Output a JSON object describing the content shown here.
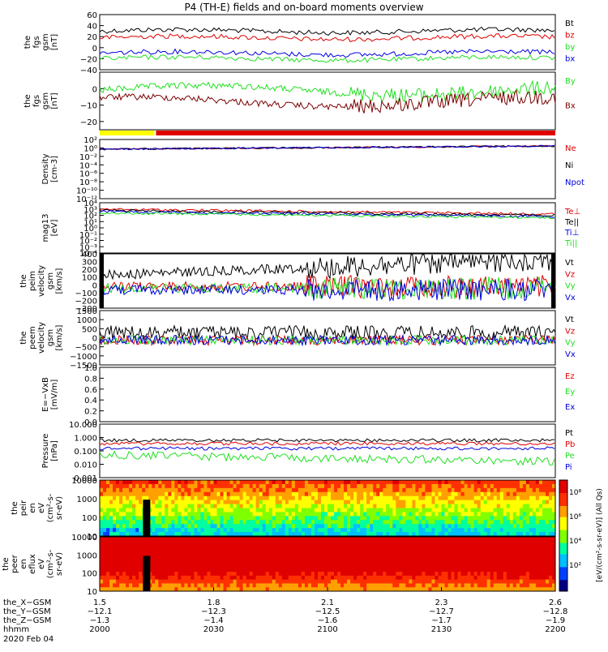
{
  "title": "P4 (TH-E) fields and on-board moments overview",
  "colors": {
    "black": "#000000",
    "red": "#e00000",
    "green": "#20e020",
    "blue": "#0000e0",
    "darkred": "#7a0000",
    "yellow": "#ffff00"
  },
  "chart_data": [
    {
      "id": "fgs_gsm",
      "type": "line",
      "ylabel": [
        "the",
        "fgs",
        "gsm",
        "[nT]"
      ],
      "ylim": [
        -40,
        60
      ],
      "yticks": [
        "60",
        "40",
        "20",
        "0",
        "−20",
        "−40"
      ],
      "series": [
        {
          "name": "Bt",
          "color": "black",
          "base": 30
        },
        {
          "name": "bz",
          "color": "red",
          "base": 18
        },
        {
          "name": "by",
          "color": "green",
          "base": -20
        },
        {
          "name": "bx",
          "color": "blue",
          "base": -10
        }
      ]
    },
    {
      "id": "fgs_gse",
      "type": "line",
      "ylabel": [
        "the",
        "fgs",
        "gsm",
        "[nT]"
      ],
      "ylim": [
        -25,
        10
      ],
      "yticks": [
        "0",
        "−10",
        "−20"
      ],
      "ytickvals": [
        0,
        -10,
        -20
      ],
      "series": [
        {
          "name": "By",
          "color": "green",
          "base": -1
        },
        {
          "name": "Bx",
          "color": "darkred",
          "base": -8
        }
      ]
    },
    {
      "id": "density",
      "type": "line",
      "ylabel": [
        "Density",
        "[cm-3]"
      ],
      "yticks": [
        "10²",
        "10⁰",
        "10⁻²",
        "10⁻⁴",
        "10⁻⁶",
        "10⁻⁸",
        "10⁻¹⁰",
        "10⁻¹²"
      ],
      "series": [
        {
          "name": "Ne",
          "color": "red"
        },
        {
          "name": "Ni",
          "color": "black"
        },
        {
          "name": "Npot",
          "color": "blue"
        }
      ]
    },
    {
      "id": "temp",
      "type": "line",
      "ylabel": [
        "mag13",
        "[eV]"
      ],
      "yticks": [
        "10⁴",
        "10³",
        "10²",
        "10¹",
        "10⁰",
        "10⁻¹",
        "10⁻²",
        "10⁻³",
        "10⁻⁴"
      ],
      "series": [
        {
          "name": "Te⊥",
          "color": "red"
        },
        {
          "name": "Te||",
          "color": "black"
        },
        {
          "name": "Ti⊥",
          "color": "blue"
        },
        {
          "name": "Ti||",
          "color": "green"
        }
      ]
    },
    {
      "id": "peim_vel",
      "type": "line",
      "ylabel": [
        "the",
        "peim",
        "velocity",
        "gsm",
        "[km/s]"
      ],
      "ylim": [
        -300,
        400
      ],
      "yticks": [
        "400",
        "300",
        "200",
        "100",
        "0",
        "−100",
        "−200",
        "−300"
      ],
      "series": [
        {
          "name": "Vt",
          "color": "black"
        },
        {
          "name": "Vz",
          "color": "red"
        },
        {
          "name": "Vy",
          "color": "green"
        },
        {
          "name": "Vx",
          "color": "blue"
        }
      ]
    },
    {
      "id": "peem_vel",
      "type": "line",
      "ylabel": [
        "the",
        "peem",
        "velocity",
        "gsm",
        "[km/s]"
      ],
      "ylim": [
        -1500,
        1500
      ],
      "yticks": [
        "1500",
        "1000",
        "500",
        "0",
        "−500",
        "−1000",
        "−1500"
      ],
      "series": [
        {
          "name": "Vt",
          "color": "black"
        },
        {
          "name": "Vz",
          "color": "red"
        },
        {
          "name": "Vy",
          "color": "green"
        },
        {
          "name": "Vx",
          "color": "blue"
        }
      ]
    },
    {
      "id": "efield",
      "type": "line",
      "ylabel": [
        "E=−VxB",
        "[mV/m]"
      ],
      "ylim": [
        0,
        1
      ],
      "yticks": [
        "1.0",
        "0.8",
        "0.6",
        "0.4",
        "0.2",
        "0.0"
      ],
      "series": [
        {
          "name": "Ez",
          "color": "red"
        },
        {
          "name": "Ey",
          "color": "green"
        },
        {
          "name": "Ex",
          "color": "blue"
        }
      ]
    },
    {
      "id": "pressure",
      "type": "line",
      "ylabel": [
        "Pressure",
        "[nPa]"
      ],
      "yticks": [
        "10.000",
        "1.000",
        "0.100",
        "0.010",
        "0.001"
      ],
      "series": [
        {
          "name": "Pt",
          "color": "black"
        },
        {
          "name": "Pb",
          "color": "red"
        },
        {
          "name": "Pe",
          "color": "green"
        },
        {
          "name": "Pi",
          "color": "blue"
        }
      ]
    },
    {
      "id": "peir_spec",
      "type": "heatmap",
      "ylabel": [
        "the",
        "peir",
        "en",
        "eV",
        "(cm²-s-",
        "sr-eV)"
      ],
      "yticks": [
        "10000",
        "1000",
        "100",
        "10"
      ]
    },
    {
      "id": "peer_spec",
      "type": "heatmap",
      "ylabel": [
        "the",
        "peer",
        "en",
        "eflux",
        "eV",
        "(cm²-s-",
        "sr-eV)"
      ],
      "yticks": [
        "10000",
        "1000",
        "100",
        "10"
      ]
    }
  ],
  "colorbar": {
    "label": "[eV/(cm²-s-sr-eV)] (All Qs)",
    "ticks": [
      "10⁸",
      "10⁶",
      "10⁴",
      "10²"
    ]
  },
  "xaxis": {
    "rows": [
      {
        "label": "the_X−GSM",
        "values": [
          "1.5",
          "1.8",
          "2.1",
          "2.3",
          "2.6"
        ]
      },
      {
        "label": "the_Y−GSM",
        "values": [
          "−12.1",
          "−12.3",
          "−12.5",
          "−12.7",
          "−12.8"
        ]
      },
      {
        "label": "the_Z−GSM",
        "values": [
          "−1.3",
          "−1.4",
          "−1.6",
          "−1.7",
          "−1.9"
        ]
      },
      {
        "label": "hhmm",
        "values": [
          "2000",
          "2030",
          "2100",
          "2130",
          "2200"
        ]
      }
    ],
    "date": "2020 Feb 04"
  },
  "mode_bar": {
    "yellow_fraction": 0.12
  }
}
